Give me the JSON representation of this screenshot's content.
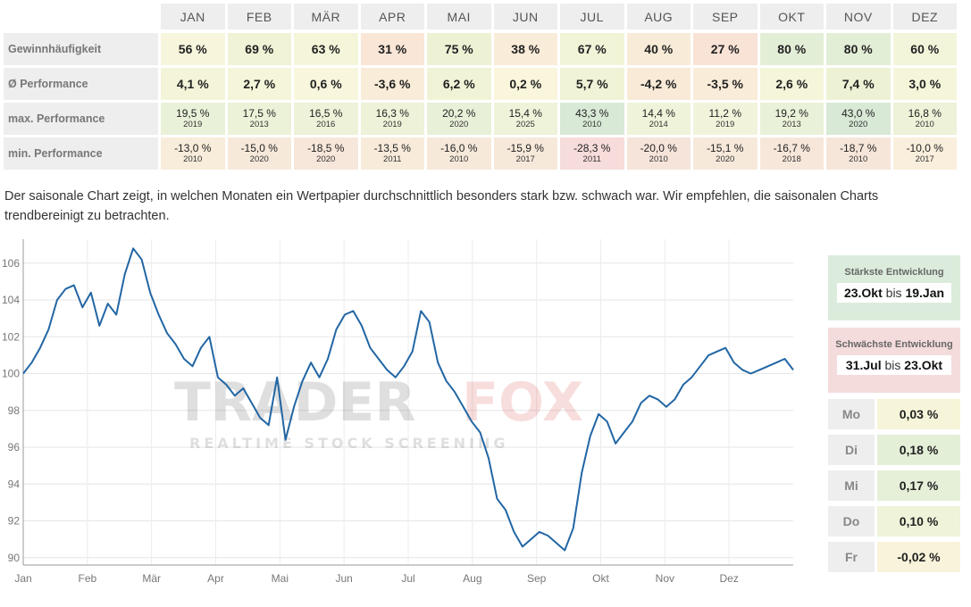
{
  "table": {
    "months": [
      "JAN",
      "FEB",
      "MÄR",
      "APR",
      "MAI",
      "JUN",
      "JUL",
      "AUG",
      "SEP",
      "OKT",
      "NOV",
      "DEZ"
    ],
    "rows": [
      {
        "label": "Gewinnhäufigkeit",
        "kind": "big",
        "values": [
          "56 %",
          "69 %",
          "63 %",
          "31 %",
          "75 %",
          "38 %",
          "67 %",
          "40 %",
          "27 %",
          "80 %",
          "80 %",
          "60 %"
        ],
        "colors": [
          "#f7f6dd",
          "#f0f3d6",
          "#f5f5da",
          "#f9e6d6",
          "#edf2d5",
          "#f9ecd8",
          "#f2f4d8",
          "#f8ecd8",
          "#f9e3d6",
          "#e3eed6",
          "#e3eed6",
          "#f3f5da"
        ]
      },
      {
        "label": "Ø Performance",
        "kind": "big",
        "values": [
          "4,1 %",
          "2,7 %",
          "0,6 %",
          "-3,6 %",
          "6,2 %",
          "0,2 %",
          "5,7 %",
          "-4,2 %",
          "-3,5 %",
          "2,6 %",
          "7,4 %",
          "3,0 %"
        ],
        "colors": [
          "#f4f5d8",
          "#f5f5da",
          "#f8f6dc",
          "#f9ecd8",
          "#f0f3d6",
          "#faf6dc",
          "#f0f3d6",
          "#f9ead8",
          "#f9ecd8",
          "#f5f5da",
          "#edf2d5",
          "#f5f5da"
        ]
      },
      {
        "label": "max. Performance",
        "kind": "two",
        "values": [
          "19,5 %",
          "17,5 %",
          "16,5 %",
          "16,3 %",
          "20,2 %",
          "15,4 %",
          "43,3 %",
          "14,4 %",
          "11,2 %",
          "19,2 %",
          "43,0 %",
          "16,8 %"
        ],
        "years": [
          "2019",
          "2013",
          "2016",
          "2019",
          "2020",
          "2025",
          "2010",
          "2014",
          "2019",
          "2013",
          "2020",
          "2010"
        ],
        "colors": [
          "#e9f1d8",
          "#ecf2d8",
          "#edf2d8",
          "#edf2d8",
          "#e8f0d8",
          "#eef3d9",
          "#d8e9d6",
          "#eff3d9",
          "#f1f4da",
          "#e9f1d8",
          "#d8e9d6",
          "#edf2d8"
        ]
      },
      {
        "label": "min. Performance",
        "kind": "two",
        "values": [
          "-13,0 %",
          "-15,0 %",
          "-18,5 %",
          "-13,5 %",
          "-16,0 %",
          "-15,9 %",
          "-28,3 %",
          "-20,0 %",
          "-15,1 %",
          "-16,7 %",
          "-18,7 %",
          "-10,0 %"
        ],
        "years": [
          "2010",
          "2020",
          "2020",
          "2011",
          "2010",
          "2017",
          "2011",
          "2010",
          "2020",
          "2018",
          "2010",
          "2017"
        ],
        "colors": [
          "#f8ecda",
          "#f7e9da",
          "#f7e6da",
          "#f8ebda",
          "#f7e9da",
          "#f7e9da",
          "#f6dcda",
          "#f6e4da",
          "#f7e9da",
          "#f7e7da",
          "#f6e6da",
          "#f9efdc"
        ]
      }
    ]
  },
  "description": "Der saisonale Chart zeigt, in welchen Monaten ein Wertpapier durchschnittlich besonders stark bzw. schwach war. Wir empfehlen, die saisonalen Charts trendbereinigt zu betrachten.",
  "watermark": {
    "title_a": "TRADER",
    "title_b": "FOX",
    "subtitle": "REALTIME STOCK SCREENING"
  },
  "side": {
    "strongest": {
      "title": "Stärkste Entwicklung",
      "from": "23.Okt",
      "sep": "bis",
      "to": "19.Jan"
    },
    "weakest": {
      "title": "Schwächste Entwicklung",
      "from": "31.Jul",
      "sep": "bis",
      "to": "23.Okt"
    },
    "weekdays": [
      {
        "label": "Mo",
        "value": "0,03 %",
        "color": "#f6f5d9"
      },
      {
        "label": "Di",
        "value": "0,18 %",
        "color": "#e4efd8"
      },
      {
        "label": "Mi",
        "value": "0,17 %",
        "color": "#e6f0d8"
      },
      {
        "label": "Do",
        "value": "0,10 %",
        "color": "#eef3d9"
      },
      {
        "label": "Fr",
        "value": "-0,02 %",
        "color": "#f8f3da"
      }
    ]
  },
  "chart_data": {
    "type": "line",
    "x_tick_labels": [
      "Jan",
      "Feb",
      "Mär",
      "Apr",
      "Mai",
      "Jun",
      "Jul",
      "Aug",
      "Sep",
      "Okt",
      "Nov",
      "Dez"
    ],
    "y_ticks": [
      90,
      92,
      94,
      96,
      98,
      100,
      102,
      104,
      106
    ],
    "ylim": [
      89.6,
      107.3
    ],
    "grid": true,
    "line_color": "#2266a4",
    "series": [
      {
        "x": [
          0,
          4,
          8,
          12,
          16,
          20,
          24,
          28,
          32,
          36,
          40,
          44,
          48,
          52,
          56,
          60,
          64,
          68,
          72,
          76,
          80,
          84,
          88,
          92,
          96,
          100,
          104,
          108,
          112,
          116,
          120,
          124,
          128,
          132,
          136,
          140,
          144,
          148,
          152,
          156,
          160,
          164,
          168,
          172,
          176,
          180,
          184,
          188,
          192,
          196,
          200,
          204,
          208,
          212,
          216,
          220,
          224,
          228,
          232,
          236,
          240,
          244,
          248,
          252,
          256,
          260,
          264,
          268,
          272,
          276,
          280,
          284,
          288,
          292,
          296,
          300,
          304,
          308,
          312,
          316,
          320,
          324,
          328,
          332,
          336,
          340,
          344,
          348,
          352,
          356,
          360,
          364
        ],
        "y": [
          100.0,
          100.6,
          101.4,
          102.4,
          104.0,
          104.6,
          104.8,
          103.6,
          104.4,
          102.6,
          103.8,
          103.2,
          105.4,
          106.8,
          106.2,
          104.4,
          103.2,
          102.2,
          101.6,
          100.8,
          100.4,
          101.4,
          102.0,
          99.8,
          99.4,
          98.8,
          99.2,
          98.4,
          97.6,
          97.2,
          99.8,
          96.4,
          98.2,
          99.6,
          100.6,
          99.8,
          100.8,
          102.4,
          103.2,
          103.4,
          102.6,
          101.4,
          100.8,
          100.2,
          99.8,
          100.4,
          101.2,
          103.4,
          102.8,
          100.6,
          99.6,
          99.0,
          98.2,
          97.4,
          96.8,
          95.4,
          93.2,
          92.6,
          91.4,
          90.6,
          91.0,
          91.4,
          91.2,
          90.8,
          90.4,
          91.6,
          94.6,
          96.6,
          97.8,
          97.4,
          96.2,
          96.8,
          97.4,
          98.4,
          98.8,
          98.6,
          98.2,
          98.6,
          99.4,
          99.8,
          100.4,
          101.0,
          101.2,
          101.4,
          100.6,
          100.2,
          100.0,
          100.2,
          100.4,
          100.6,
          100.8,
          100.2
        ]
      }
    ]
  }
}
